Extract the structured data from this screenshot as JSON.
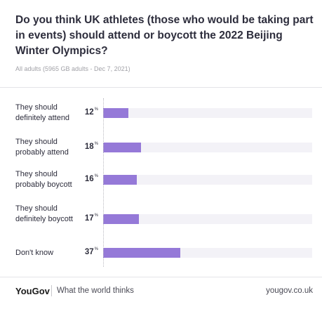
{
  "header": {
    "title": "Do you think UK athletes (those who would be taking part in events) should attend or boycott the 2022 Beijing Winter Olympics?",
    "subtitle": "All adults (5965 GB adults - Dec 7, 2021)"
  },
  "colors": {
    "bar": "#9579d8",
    "track": "#f3f2f7"
  },
  "chart_data": {
    "type": "bar",
    "orientation": "horizontal",
    "title": "Do you think UK athletes (those who would be taking part in events) should attend or boycott the 2022 Beijing Winter Olympics?",
    "categories": [
      "They should definitely attend",
      "They should probably attend",
      "They should probably boycott",
      "They should definitely boycott",
      "Don't know"
    ],
    "values": [
      12,
      18,
      16,
      17,
      37
    ],
    "value_suffix": "%",
    "xlim": [
      0,
      100
    ],
    "grid": false
  },
  "footer": {
    "brand": "YouGov",
    "tagline": "What the world thinks",
    "site": "yougov.co.uk"
  }
}
